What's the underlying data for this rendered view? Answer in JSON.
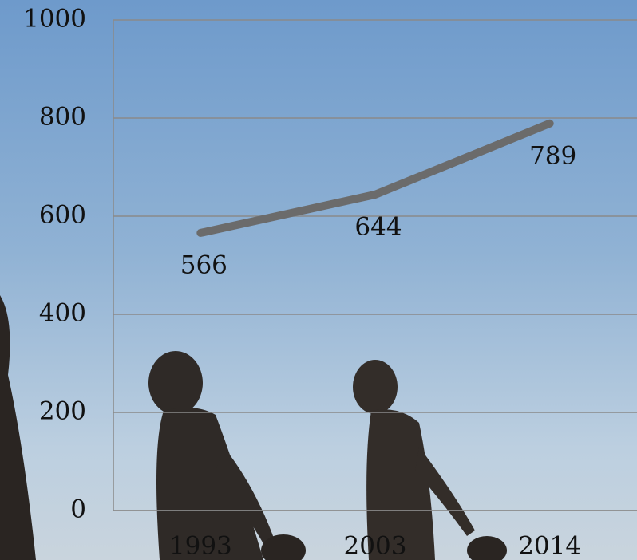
{
  "chart_data": {
    "type": "line",
    "categories": [
      "1993",
      "2003",
      "2014"
    ],
    "series": [
      {
        "color": "#6b6b6b",
        "values": [
          566,
          644,
          789
        ]
      }
    ],
    "ylim": [
      0,
      1000
    ],
    "yticks": [
      0,
      200,
      400,
      600,
      800,
      1000
    ],
    "grid": true
  }
}
